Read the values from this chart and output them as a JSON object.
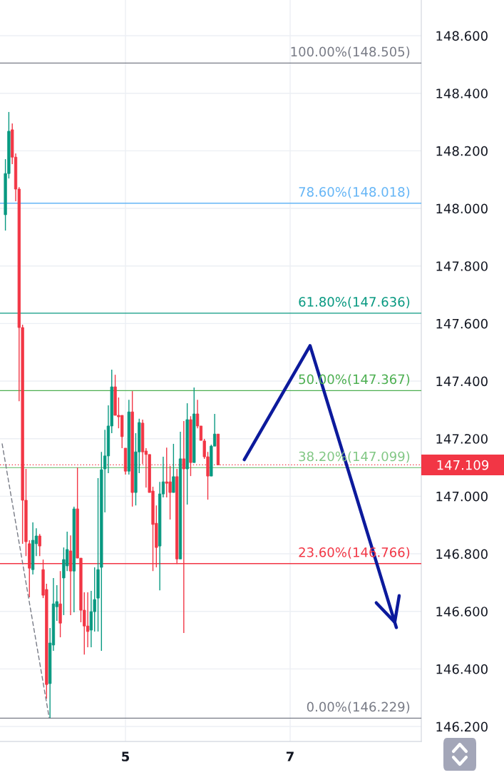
{
  "chart_data": {
    "type": "candlestick",
    "x": [
      3.5417,
      3.5833,
      3.625,
      3.6667,
      3.7083,
      3.75,
      3.7917,
      3.8333,
      3.875,
      3.9167,
      3.9583,
      4.0,
      4.0417,
      4.0833,
      4.125,
      4.1667,
      4.2083,
      4.25,
      4.2917,
      4.3333,
      4.375,
      4.4167,
      4.4583,
      4.5,
      4.5417,
      4.5833,
      4.625,
      4.6667,
      4.7083,
      4.75,
      4.7917,
      4.8333,
      4.875,
      4.9167,
      4.9583,
      5.0,
      5.0417,
      5.0833,
      5.125,
      5.1667,
      5.2083,
      5.25,
      5.2917,
      5.3333,
      5.375,
      5.4167,
      5.4583,
      5.5,
      5.5417,
      5.5833,
      5.625,
      5.6667,
      5.7083,
      5.75,
      5.7917,
      5.8333,
      5.875,
      5.9167,
      5.9583,
      6.0,
      6.0417,
      6.0833,
      6.125
    ],
    "ohlc": [
      [
        147.978,
        148.171,
        147.923,
        148.121
      ],
      [
        148.121,
        148.335,
        148.104,
        148.268
      ],
      [
        148.273,
        148.295,
        148.154,
        148.178
      ],
      [
        148.178,
        148.191,
        148.025,
        148.067
      ],
      [
        148.067,
        148.074,
        147.33,
        147.586
      ],
      [
        147.586,
        147.596,
        146.835,
        146.986
      ],
      [
        146.986,
        147.095,
        146.792,
        146.842
      ],
      [
        146.835,
        146.847,
        146.649,
        146.75
      ],
      [
        146.745,
        146.909,
        146.728,
        146.847
      ],
      [
        146.835,
        146.889,
        146.792,
        146.862
      ],
      [
        146.862,
        146.869,
        146.792,
        146.827
      ],
      [
        146.745,
        146.78,
        146.646,
        146.656
      ],
      [
        146.676,
        146.696,
        146.297,
        146.346
      ],
      [
        146.349,
        146.542,
        146.229,
        146.49
      ],
      [
        146.483,
        146.716,
        146.463,
        146.626
      ],
      [
        146.616,
        146.691,
        146.567,
        146.634
      ],
      [
        146.626,
        146.74,
        146.51,
        146.559
      ],
      [
        146.716,
        146.822,
        146.587,
        146.78
      ],
      [
        146.758,
        146.877,
        146.74,
        146.815
      ],
      [
        146.81,
        146.864,
        146.587,
        146.74
      ],
      [
        146.74,
        146.964,
        146.597,
        146.956
      ],
      [
        146.956,
        147.1,
        146.785,
        146.785
      ],
      [
        146.785,
        146.785,
        146.562,
        146.604
      ],
      [
        146.604,
        146.666,
        146.45,
        146.549
      ],
      [
        146.549,
        146.666,
        146.475,
        146.53
      ],
      [
        146.535,
        146.671,
        146.475,
        146.599
      ],
      [
        146.599,
        146.753,
        146.53,
        146.641
      ],
      [
        146.646,
        147.063,
        146.53,
        146.745
      ],
      [
        146.753,
        147.154,
        146.463,
        147.092
      ],
      [
        147.095,
        147.231,
        146.944,
        147.14
      ],
      [
        147.14,
        147.316,
        147.08,
        147.244
      ],
      [
        147.244,
        147.44,
        147.219,
        147.38
      ],
      [
        147.38,
        147.422,
        147.281,
        147.281
      ],
      [
        147.281,
        147.343,
        147.236,
        147.276
      ],
      [
        147.281,
        147.281,
        147.167,
        147.207
      ],
      [
        147.167,
        147.167,
        147.075,
        147.087
      ],
      [
        147.087,
        147.335,
        147.075,
        147.293
      ],
      [
        147.293,
        147.365,
        146.964,
        147.013
      ],
      [
        147.013,
        147.219,
        146.968,
        147.154
      ],
      [
        147.154,
        147.269,
        147.08,
        147.256
      ],
      [
        147.254,
        147.266,
        147.112,
        147.154
      ],
      [
        147.157,
        147.167,
        147.03,
        147.145
      ],
      [
        147.145,
        147.145,
        147.013,
        147.013
      ],
      [
        147.018,
        147.033,
        146.74,
        146.902
      ],
      [
        146.906,
        146.968,
        146.753,
        146.822
      ],
      [
        146.827,
        147.05,
        146.673,
        147.008
      ],
      [
        147.008,
        147.137,
        146.996,
        147.05
      ],
      [
        147.05,
        147.169,
        146.996,
        147.045
      ],
      [
        147.05,
        147.105,
        146.919,
        147.013
      ],
      [
        147.013,
        147.182,
        147.013,
        147.068
      ],
      [
        147.068,
        147.095,
        146.765,
        146.782
      ],
      [
        146.782,
        147.224,
        146.782,
        147.13
      ],
      [
        147.13,
        147.261,
        146.525,
        147.095
      ],
      [
        147.095,
        147.323,
        146.971,
        147.266
      ],
      [
        147.266,
        147.278,
        147.07,
        147.117
      ],
      [
        147.117,
        147.378,
        147.117,
        147.286
      ],
      [
        147.286,
        147.335,
        147.236,
        147.244
      ],
      [
        147.244,
        147.244,
        147.194,
        147.194
      ],
      [
        147.192,
        147.199,
        147.13,
        147.137
      ],
      [
        147.137,
        147.154,
        146.988,
        147.07
      ],
      [
        147.07,
        147.179,
        147.07,
        147.174
      ],
      [
        147.174,
        147.286,
        147.174,
        147.216
      ],
      [
        147.216,
        147.216,
        147.109,
        147.109
      ]
    ],
    "colors": [
      "#089981",
      "#089981",
      "#f23645",
      "#f23645",
      "#f23645",
      "#f23645",
      "#f23645",
      "#f23645",
      "#089981",
      "#089981",
      "#f23645",
      "#f23645",
      "#f23645",
      "#089981",
      "#089981",
      "#089981",
      "#f23645",
      "#089981",
      "#089981",
      "#f23645",
      "#089981",
      "#f23645",
      "#f23645",
      "#f23645",
      "#f23645",
      "#089981",
      "#089981",
      "#089981",
      "#089981",
      "#089981",
      "#089981",
      "#089981",
      "#f23645",
      "#f23645",
      "#f23645",
      "#f23645",
      "#089981",
      "#f23645",
      "#089981",
      "#089981",
      "#f23645",
      "#f23645",
      "#f23645",
      "#f23645",
      "#f23645",
      "#089981",
      "#089981",
      "#f23645",
      "#f23645",
      "#089981",
      "#f23645",
      "#089981",
      "#f23645",
      "#089981",
      "#f23645",
      "#089981",
      "#f23645",
      "#f23645",
      "#f23645",
      "#f23645",
      "#089981",
      "#089981",
      "#f23645"
    ],
    "series": [
      {
        "type": "line",
        "x": [
          3.502,
          4.074
        ],
        "values": [
          147.182,
          146.229
        ],
        "color": "#787b86",
        "line_style": "dashed"
      },
      {
        "type": "line",
        "x": [
          6.443,
          7.242,
          8.29
        ],
        "values": [
          147.127,
          147.523,
          146.544
        ],
        "color": "#0c1a9c"
      }
    ],
    "ref_lines": [
      {
        "axis": "y",
        "value": 148.505,
        "label": "100.00%(148.505)",
        "color": "#787b86"
      },
      {
        "axis": "y",
        "value": 148.018,
        "label": "78.60%(148.018)",
        "color": "#64b5f6"
      },
      {
        "axis": "y",
        "value": 147.636,
        "label": "61.80%(147.636)",
        "color": "#089981"
      },
      {
        "axis": "y",
        "value": 147.367,
        "label": "50.00%(147.367)",
        "color": "#4caf50"
      },
      {
        "axis": "y",
        "value": 147.099,
        "label": "38.20%(147.099)",
        "color": "#81c784"
      },
      {
        "axis": "y",
        "value": 146.766,
        "label": "23.60%(146.766)",
        "color": "#f23645"
      },
      {
        "axis": "y",
        "value": 146.229,
        "label": "0.00%(146.229)",
        "color": "#787b86"
      },
      {
        "axis": "y",
        "value": 147.109,
        "label": "147.109",
        "color": "#f23645",
        "line_style": "dotted"
      }
    ],
    "xlim": [
      3.476,
      8.593
    ],
    "ylim": [
      146.148,
      148.724
    ],
    "xticks": [
      5,
      7
    ],
    "yticks": [
      {
        "value": 146.2,
        "label": "146.200"
      },
      {
        "value": 146.4,
        "label": "146.400"
      },
      {
        "value": 146.6,
        "label": "146.600"
      },
      {
        "value": 146.8,
        "label": "146.800"
      },
      {
        "value": 147.0,
        "label": "147.000"
      },
      {
        "value": 147.2,
        "label": "147.200"
      },
      {
        "value": 147.4,
        "label": "147.400"
      },
      {
        "value": 147.6,
        "label": "147.600"
      },
      {
        "value": 147.8,
        "label": "147.800"
      },
      {
        "value": 148.0,
        "label": "148.000"
      },
      {
        "value": 148.2,
        "label": "148.200"
      },
      {
        "value": 148.4,
        "label": "148.400"
      },
      {
        "value": 148.6,
        "label": "148.600"
      }
    ],
    "grid": true
  }
}
